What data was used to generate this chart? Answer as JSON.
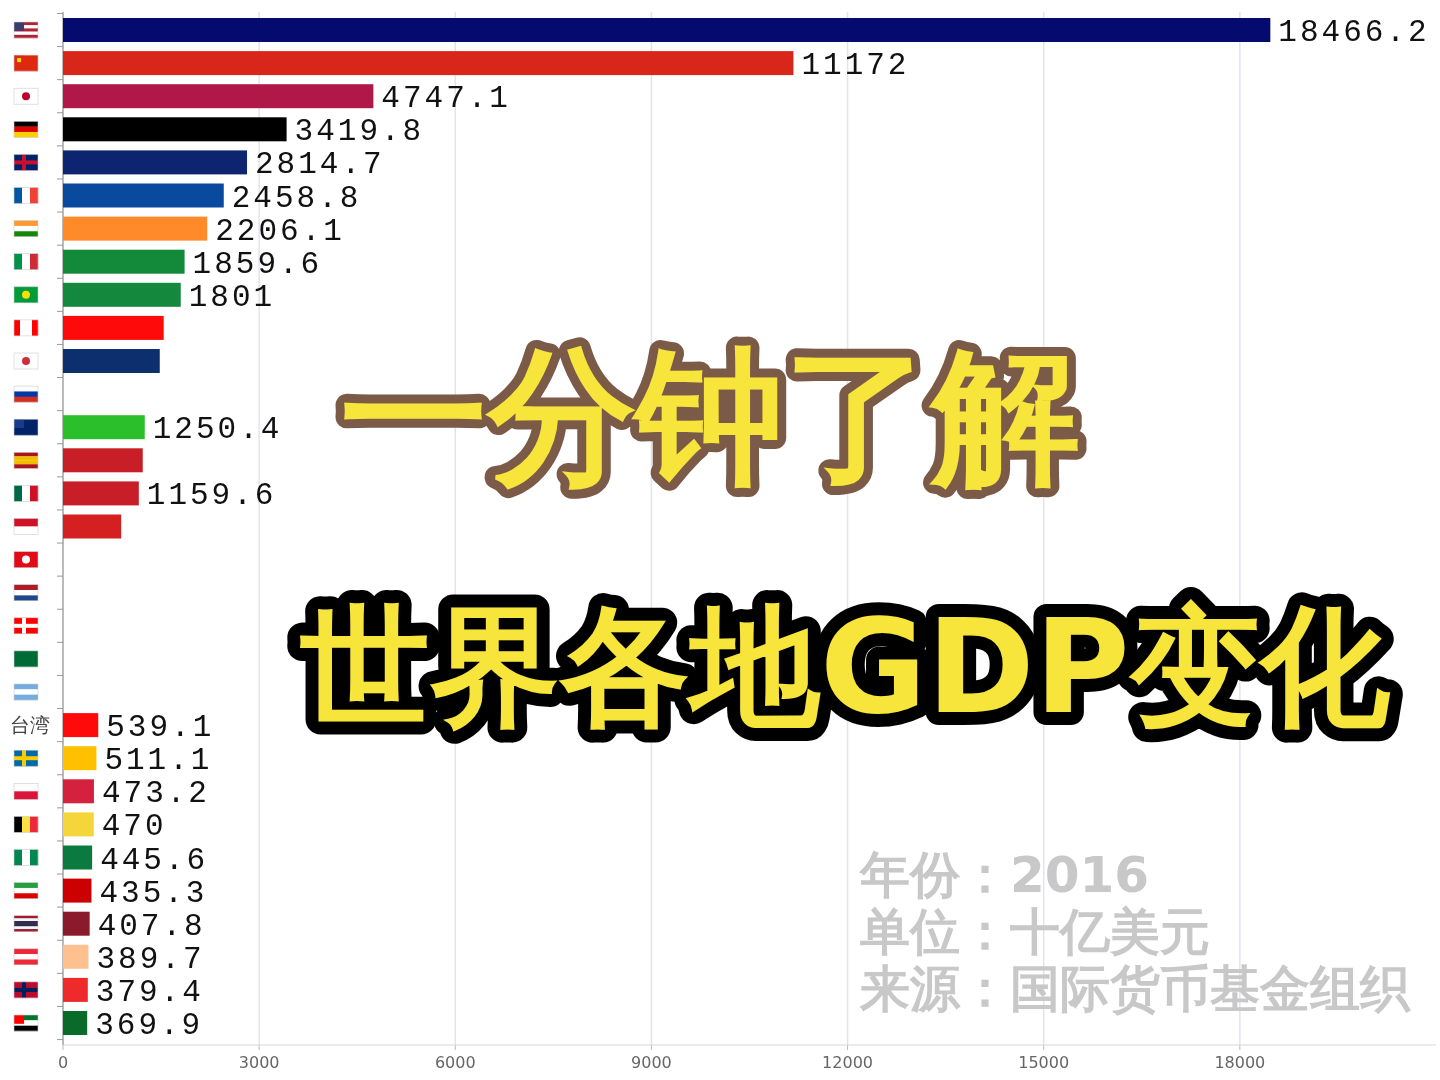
{
  "chart_data": {
    "type": "bar",
    "orientation": "horizontal",
    "title": "一分钟了解",
    "subtitle": "世界各地GDP变化",
    "categories": [
      null,
      null,
      null,
      null,
      null,
      null,
      null,
      null,
      null,
      null,
      null,
      null,
      null,
      null,
      null,
      null,
      null,
      null,
      null,
      null,
      null,
      "台湾",
      null,
      null,
      null,
      null,
      null,
      null,
      null,
      null,
      null
    ],
    "values": [
      18466.2,
      11172,
      4747.1,
      3419.8,
      2814.7,
      2458.8,
      2206.1,
      1859.6,
      1801,
      1540,
      1480,
      null,
      1250.4,
      1220,
      1159.6,
      890,
      null,
      null,
      null,
      null,
      null,
      539.1,
      511.1,
      473.2,
      470,
      445.6,
      435.3,
      407.8,
      389.7,
      379.4,
      369.9
    ],
    "value_labels": [
      "18466.2",
      "11172",
      "4747.1",
      "3419.8",
      "2814.7",
      "2458.8",
      "2206.1",
      "1859.6",
      "1801",
      null,
      null,
      null,
      "1250.4",
      null,
      "1159.6",
      null,
      null,
      null,
      null,
      null,
      null,
      "539.1",
      "511.1",
      "473.2",
      "470",
      "445.6",
      "435.3",
      "407.8",
      "389.7",
      "379.4",
      "369.9"
    ],
    "colors": [
      "#050a6e",
      "#d8261a",
      "#b0184a",
      "#000000",
      "#0d2470",
      "#0a4a9e",
      "#ff8a2a",
      "#128a3a",
      "#14883c",
      "#ff0a0a",
      "#0e2f6e",
      null,
      "#2cbf2c",
      "#c81e28",
      "#c81e28",
      "#d42020",
      null,
      null,
      null,
      null,
      null,
      "#ff0a0a",
      "#ffc000",
      "#d4213d",
      "#f5d63a",
      "#0a7a3e",
      "#cc0000",
      "#8b1a2a",
      "#ffc090",
      "#ee2a2a",
      "#0a6a2a"
    ],
    "xlim": [
      0,
      21000
    ],
    "xticks": [
      0,
      3000,
      6000,
      9000,
      12000,
      15000,
      18000
    ],
    "grid": "x",
    "annotations": [
      "年份：2016",
      "单位：十亿美元",
      "来源：国际货币基金组织"
    ]
  }
}
